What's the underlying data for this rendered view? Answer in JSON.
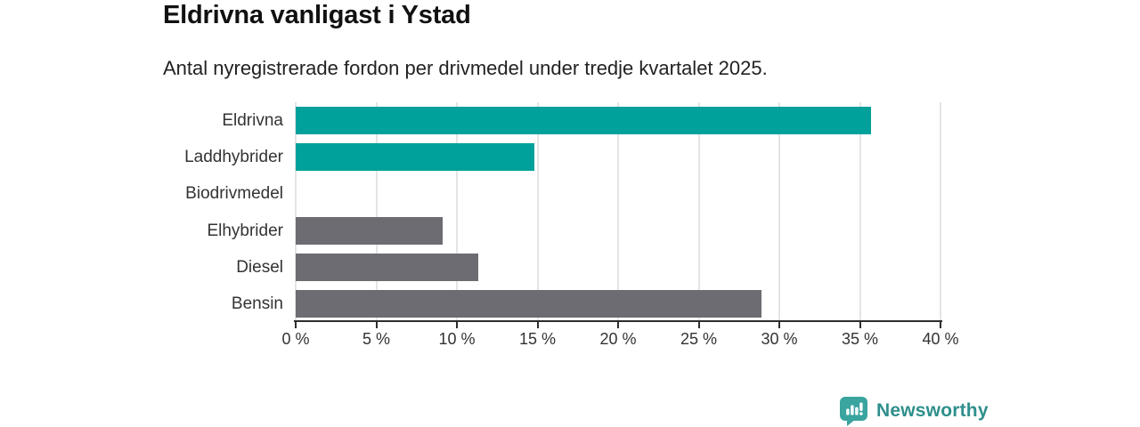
{
  "chart_data": {
    "type": "bar",
    "orientation": "horizontal",
    "title": "Eldrivna vanligast i Ystad",
    "subtitle": "Antal nyregistrerade fordon per drivmedel under tredje kvartalet 2025.",
    "categories": [
      "Eldrivna",
      "Laddhybrider",
      "Biodrivmedel",
      "Elhybrider",
      "Diesel",
      "Bensin"
    ],
    "values": [
      35.7,
      14.8,
      0,
      9.1,
      11.3,
      28.9
    ],
    "bar_colors": [
      "#00a19a",
      "#00a19a",
      "#6c6c72",
      "#6c6c72",
      "#6c6c72",
      "#6c6c72"
    ],
    "highlight_color": "#00a19a",
    "default_color": "#6c6c72",
    "xlim": [
      0,
      40
    ],
    "x_ticks": [
      0,
      5,
      10,
      15,
      20,
      25,
      30,
      35,
      40
    ],
    "x_tick_labels": [
      "0 %",
      "5 %",
      "10 %",
      "15 %",
      "20 %",
      "25 %",
      "30 %",
      "35 %",
      "40 %"
    ],
    "grid": "vertical gridlines on, horizontal off",
    "legend": "none",
    "value_labels": "none",
    "axis_color": "#2e2e2e",
    "gridline_color": "#e4e4e4"
  },
  "footer": {
    "logo_text": "Newsworthy",
    "logo_text_color": "#2e8f8c",
    "logo_icon": "newsworthy-speech-bubble-bar-chart",
    "logo_icon_color": "#3aa49f"
  }
}
